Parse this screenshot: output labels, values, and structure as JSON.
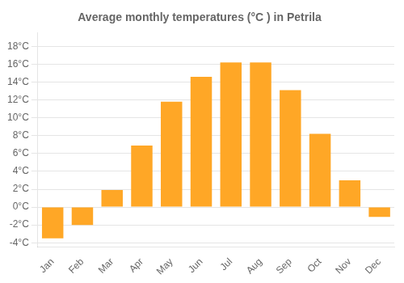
{
  "chart_data": {
    "type": "bar",
    "title": "Average monthly temperatures (°C ) in Petrila",
    "categories": [
      "Jan",
      "Feb",
      "Mar",
      "Apr",
      "May",
      "Jun",
      "Jul",
      "Aug",
      "Sep",
      "Oct",
      "Nov",
      "Dec"
    ],
    "values": [
      -3.5,
      -2.0,
      1.9,
      6.9,
      11.8,
      14.6,
      16.2,
      16.2,
      13.1,
      8.2,
      3.0,
      -1.1
    ],
    "color": "#FFA726",
    "ylim": [
      -4.5,
      19.5
    ],
    "yticks": [
      {
        "value": -4,
        "label": "-4°C"
      },
      {
        "value": -2,
        "label": "-2°C"
      },
      {
        "value": 0,
        "label": "0°C"
      },
      {
        "value": 2,
        "label": "2°C"
      },
      {
        "value": 4,
        "label": "4°C"
      },
      {
        "value": 6,
        "label": "6°C"
      },
      {
        "value": 8,
        "label": "8°C"
      },
      {
        "value": 10,
        "label": "10°C"
      },
      {
        "value": 12,
        "label": "12°C"
      },
      {
        "value": 14,
        "label": "14°C"
      },
      {
        "value": 16,
        "label": "16°C"
      },
      {
        "value": 18,
        "label": "18°C"
      }
    ],
    "grid": true
  }
}
